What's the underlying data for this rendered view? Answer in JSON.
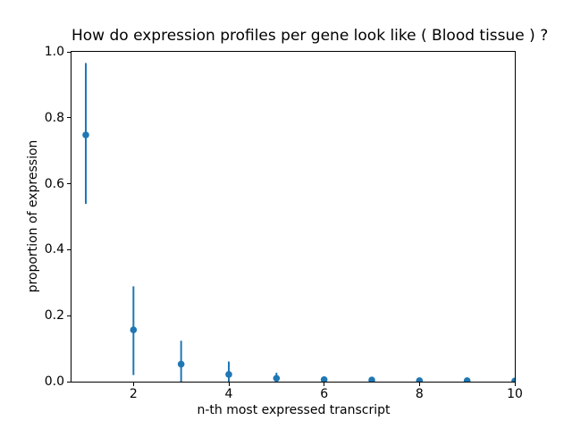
{
  "figure": {
    "background": "#ffffff",
    "spine_color": "#000000",
    "text_color": "#000000"
  },
  "chart_data": {
    "type": "scatter",
    "subtype": "errorbar",
    "title": "How do expression profiles per gene look like ( Blood tissue ) ?",
    "xlabel": "n-th most expressed transcript",
    "ylabel": "proportion of expression",
    "marker_color": "#1f77b4",
    "grid": false,
    "legend": null,
    "xlim": [
      0.7,
      10
    ],
    "ylim": [
      0,
      1
    ],
    "xticks": [
      2,
      4,
      6,
      8,
      10
    ],
    "xtick_labels": [
      "2",
      "4",
      "6",
      "8",
      "10"
    ],
    "yticks": [
      0.0,
      0.2,
      0.4,
      0.6,
      0.8,
      1.0
    ],
    "ytick_labels": [
      "0.0",
      "0.2",
      "0.4",
      "0.6",
      "0.8",
      "1.0"
    ],
    "x": [
      1,
      2,
      3,
      4,
      5,
      6,
      7,
      8,
      9,
      10
    ],
    "y": [
      0.748,
      0.157,
      0.053,
      0.022,
      0.01,
      0.006,
      0.005,
      0.003,
      0.003,
      0.002
    ],
    "err_bottom": [
      0.539,
      0.02,
      0.0,
      0.0,
      0.0,
      0.0,
      0.0,
      0.0,
      0.0,
      0.0
    ],
    "err_top": [
      0.966,
      0.289,
      0.124,
      0.061,
      0.027,
      0.013,
      0.01,
      0.007,
      0.006,
      0.005
    ]
  }
}
